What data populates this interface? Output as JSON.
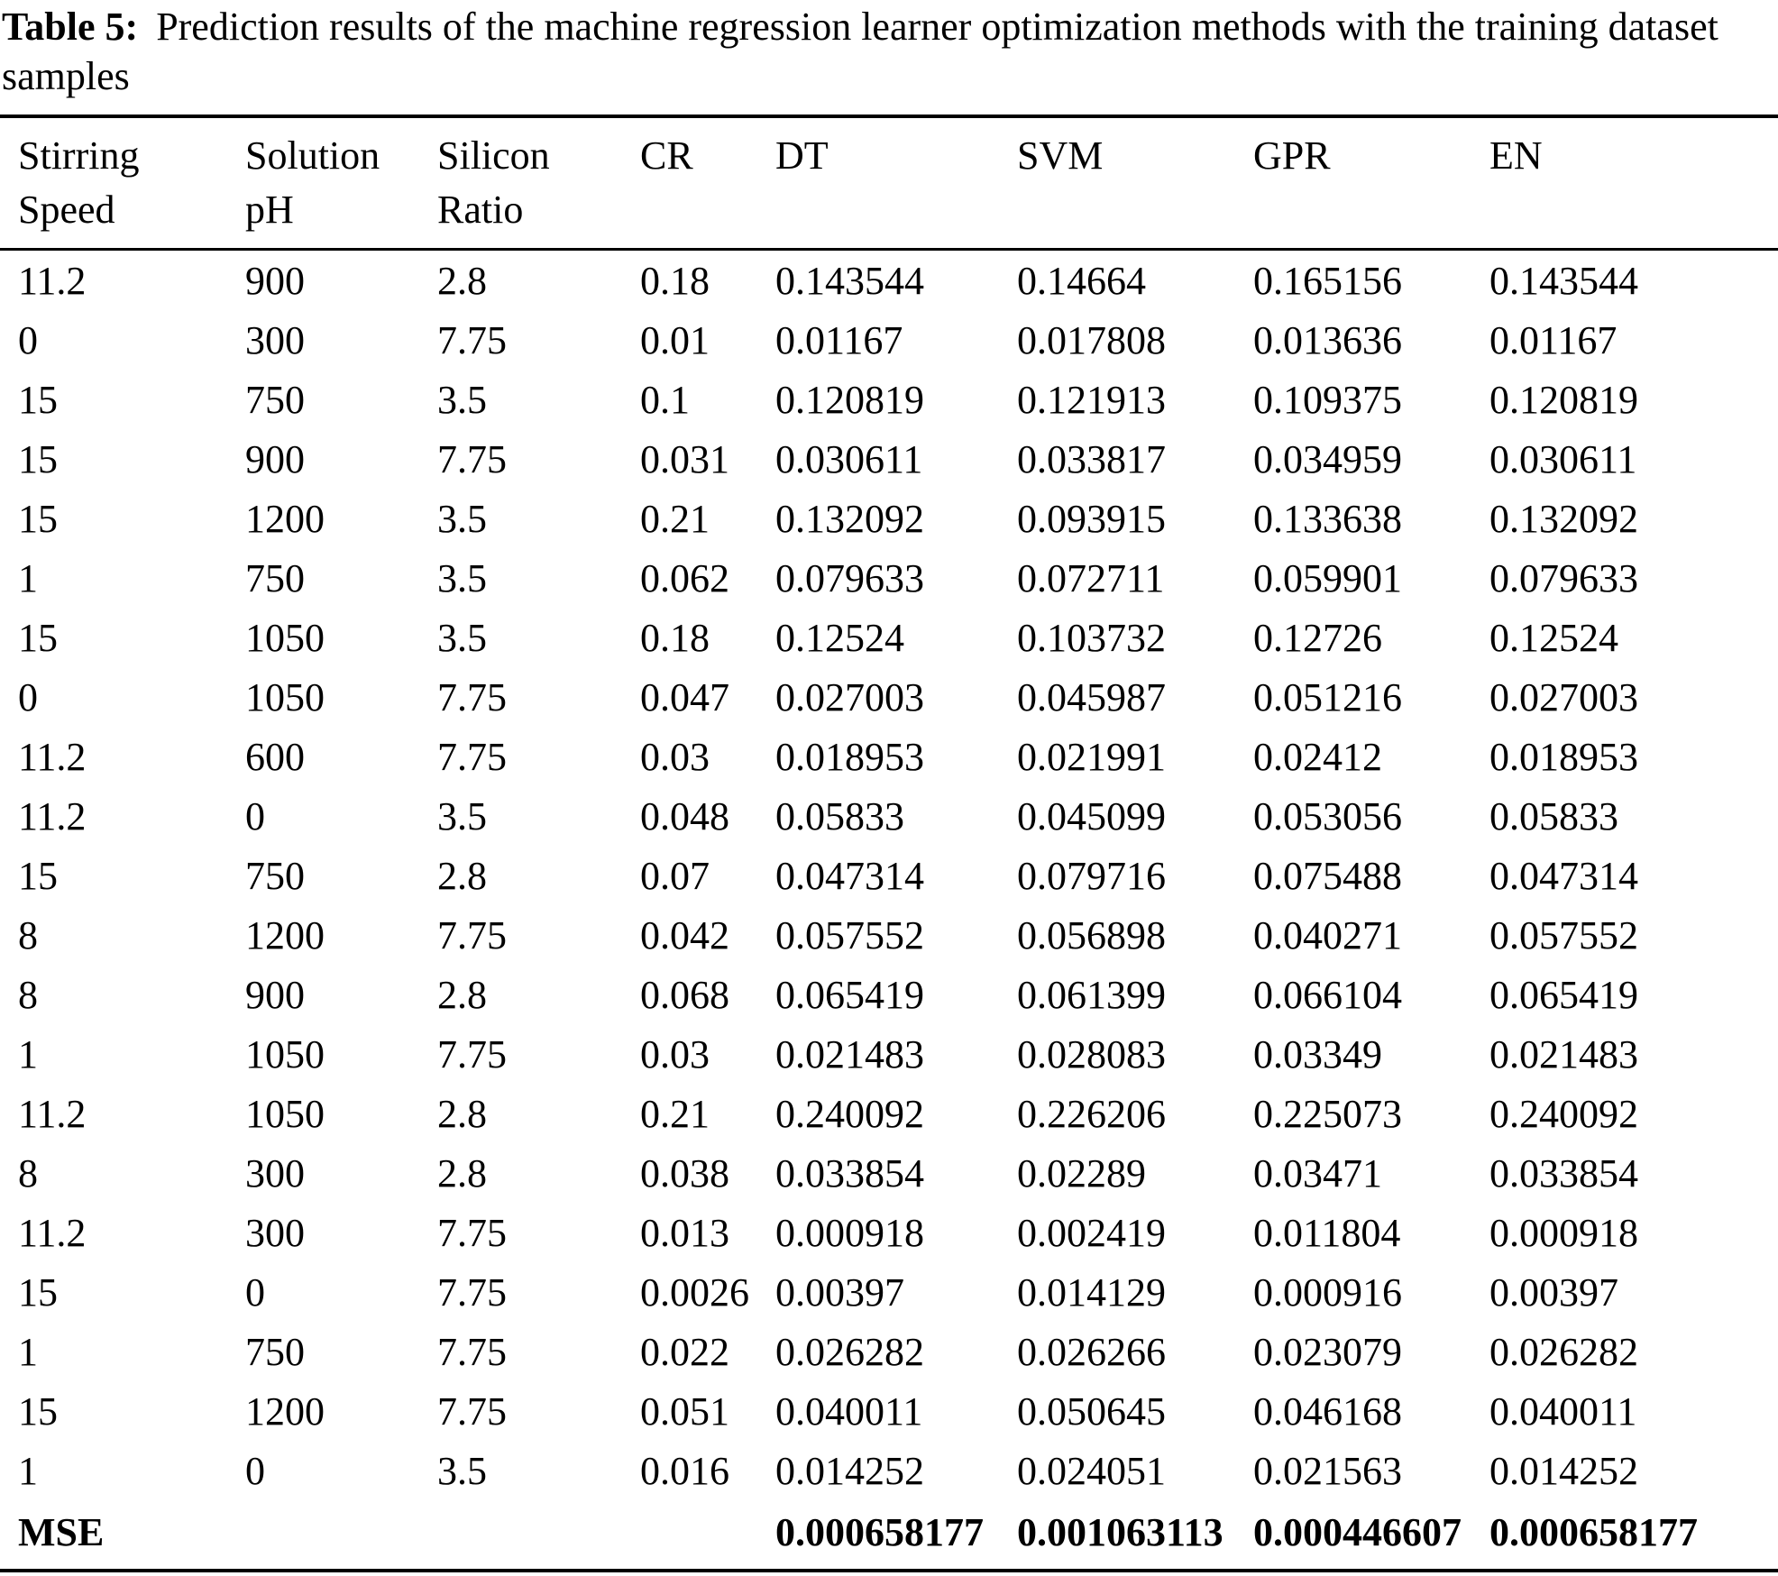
{
  "caption": {
    "label": "Table 5:",
    "text": "Prediction results of the machine regression learner optimization methods with the training dataset samples"
  },
  "table": {
    "headers": [
      {
        "line1": "Stirring",
        "line2": "Speed"
      },
      {
        "line1": "Solution",
        "line2": "pH"
      },
      {
        "line1": "Silicon",
        "line2": "Ratio"
      },
      {
        "line1": "CR",
        "line2": ""
      },
      {
        "line1": "DT",
        "line2": ""
      },
      {
        "line1": "SVM",
        "line2": ""
      },
      {
        "line1": "GPR",
        "line2": ""
      },
      {
        "line1": "EN",
        "line2": ""
      }
    ],
    "rows": [
      [
        "11.2",
        "900",
        "2.8",
        "0.18",
        "0.143544",
        "0.14664",
        "0.165156",
        "0.143544"
      ],
      [
        "0",
        "300",
        "7.75",
        "0.01",
        "0.01167",
        "0.017808",
        "0.013636",
        "0.01167"
      ],
      [
        "15",
        "750",
        "3.5",
        "0.1",
        "0.120819",
        "0.121913",
        "0.109375",
        "0.120819"
      ],
      [
        "15",
        "900",
        "7.75",
        "0.031",
        "0.030611",
        "0.033817",
        "0.034959",
        "0.030611"
      ],
      [
        "15",
        "1200",
        "3.5",
        "0.21",
        "0.132092",
        "0.093915",
        "0.133638",
        "0.132092"
      ],
      [
        "1",
        "750",
        "3.5",
        "0.062",
        "0.079633",
        "0.072711",
        "0.059901",
        "0.079633"
      ],
      [
        "15",
        "1050",
        "3.5",
        "0.18",
        "0.12524",
        "0.103732",
        "0.12726",
        "0.12524"
      ],
      [
        "0",
        "1050",
        "7.75",
        "0.047",
        "0.027003",
        "0.045987",
        "0.051216",
        "0.027003"
      ],
      [
        "11.2",
        "600",
        "7.75",
        "0.03",
        "0.018953",
        "0.021991",
        "0.02412",
        "0.018953"
      ],
      [
        "11.2",
        "0",
        "3.5",
        "0.048",
        "0.05833",
        "0.045099",
        "0.053056",
        "0.05833"
      ],
      [
        "15",
        "750",
        "2.8",
        "0.07",
        "0.047314",
        "0.079716",
        "0.075488",
        "0.047314"
      ],
      [
        "8",
        "1200",
        "7.75",
        "0.042",
        "0.057552",
        "0.056898",
        "0.040271",
        "0.057552"
      ],
      [
        "8",
        "900",
        "2.8",
        "0.068",
        "0.065419",
        "0.061399",
        "0.066104",
        "0.065419"
      ],
      [
        "1",
        "1050",
        "7.75",
        "0.03",
        "0.021483",
        "0.028083",
        "0.03349",
        "0.021483"
      ],
      [
        "11.2",
        "1050",
        "2.8",
        "0.21",
        "0.240092",
        "0.226206",
        "0.225073",
        "0.240092"
      ],
      [
        "8",
        "300",
        "2.8",
        "0.038",
        "0.033854",
        "0.02289",
        "0.03471",
        "0.033854"
      ],
      [
        "11.2",
        "300",
        "7.75",
        "0.013",
        "0.000918",
        "0.002419",
        "0.011804",
        "0.000918"
      ],
      [
        "15",
        "0",
        "7.75",
        "0.0026",
        "0.00397",
        "0.014129",
        "0.000916",
        "0.00397"
      ],
      [
        "1",
        "750",
        "7.75",
        "0.022",
        "0.026282",
        "0.026266",
        "0.023079",
        "0.026282"
      ],
      [
        "15",
        "1200",
        "7.75",
        "0.051",
        "0.040011",
        "0.050645",
        "0.046168",
        "0.040011"
      ],
      [
        "1",
        "0",
        "3.5",
        "0.016",
        "0.014252",
        "0.024051",
        "0.021563",
        "0.014252"
      ]
    ],
    "footer": [
      "MSE",
      "",
      "",
      "",
      "0.000658177",
      "0.001063113",
      "0.000446607",
      "0.000658177"
    ]
  }
}
